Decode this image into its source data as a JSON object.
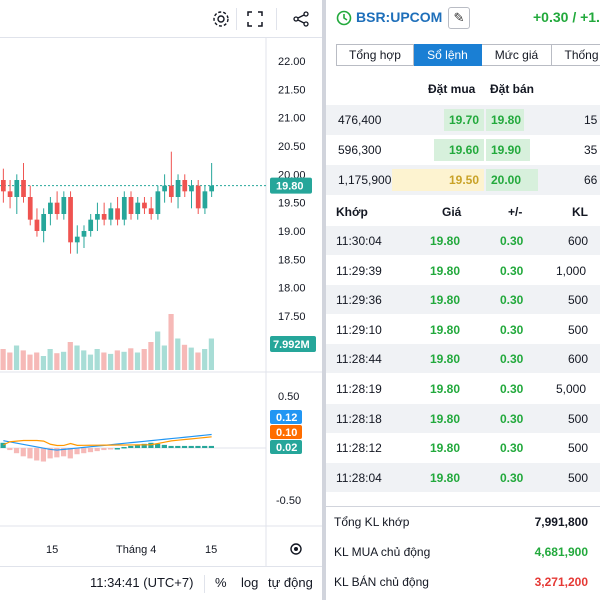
{
  "chart": {
    "toolbar": {
      "settings_icon": "gear-icon",
      "fullscreen_icon": "fullscreen-icon",
      "share_icon": "share-icon"
    },
    "price_axis": [
      "22.00",
      "21.50",
      "21.00",
      "20.50",
      "20.00",
      "19.50",
      "19.00",
      "18.50",
      "18.00",
      "17.50"
    ],
    "last_price_label": "19.80",
    "volume_label": "7.992M",
    "macd_axis": [
      "0.50",
      "-0.50"
    ],
    "macd_labels": {
      "macd": "0.12",
      "signal": "0.10",
      "hist": "0.02"
    },
    "time_axis": [
      "15",
      "Tháng 4",
      "15"
    ],
    "bottom": {
      "time": "11:34:41 (UTC+7)",
      "percent": "%",
      "log": "log",
      "auto": "tự động"
    }
  },
  "chart_data": {
    "type": "candlestick",
    "candles": [
      {
        "o": 19.9,
        "h": 20.1,
        "l": 19.5,
        "c": 19.7
      },
      {
        "o": 19.7,
        "h": 19.9,
        "l": 19.4,
        "c": 19.6
      },
      {
        "o": 19.6,
        "h": 20.0,
        "l": 19.3,
        "c": 19.9
      },
      {
        "o": 19.9,
        "h": 20.2,
        "l": 19.5,
        "c": 19.6
      },
      {
        "o": 19.6,
        "h": 19.8,
        "l": 19.1,
        "c": 19.2
      },
      {
        "o": 19.2,
        "h": 19.4,
        "l": 18.9,
        "c": 19.0
      },
      {
        "o": 19.0,
        "h": 19.4,
        "l": 18.8,
        "c": 19.3
      },
      {
        "o": 19.3,
        "h": 19.6,
        "l": 19.1,
        "c": 19.5
      },
      {
        "o": 19.5,
        "h": 19.7,
        "l": 19.2,
        "c": 19.3
      },
      {
        "o": 19.3,
        "h": 19.7,
        "l": 19.2,
        "c": 19.6
      },
      {
        "o": 19.6,
        "h": 19.7,
        "l": 18.6,
        "c": 18.8
      },
      {
        "o": 18.8,
        "h": 19.1,
        "l": 18.6,
        "c": 18.9
      },
      {
        "o": 18.9,
        "h": 19.1,
        "l": 18.7,
        "c": 19.0
      },
      {
        "o": 19.0,
        "h": 19.3,
        "l": 18.9,
        "c": 19.2
      },
      {
        "o": 19.2,
        "h": 19.5,
        "l": 19.0,
        "c": 19.3
      },
      {
        "o": 19.3,
        "h": 19.5,
        "l": 19.1,
        "c": 19.2
      },
      {
        "o": 19.2,
        "h": 19.5,
        "l": 19.1,
        "c": 19.4
      },
      {
        "o": 19.4,
        "h": 19.6,
        "l": 19.1,
        "c": 19.2
      },
      {
        "o": 19.2,
        "h": 19.7,
        "l": 19.1,
        "c": 19.6
      },
      {
        "o": 19.6,
        "h": 19.7,
        "l": 19.2,
        "c": 19.3
      },
      {
        "o": 19.3,
        "h": 19.6,
        "l": 19.2,
        "c": 19.5
      },
      {
        "o": 19.5,
        "h": 19.6,
        "l": 19.3,
        "c": 19.4
      },
      {
        "o": 19.4,
        "h": 19.6,
        "l": 19.2,
        "c": 19.3
      },
      {
        "o": 19.3,
        "h": 19.8,
        "l": 19.2,
        "c": 19.7
      },
      {
        "o": 19.7,
        "h": 20.0,
        "l": 19.5,
        "c": 19.8
      },
      {
        "o": 19.8,
        "h": 20.4,
        "l": 19.5,
        "c": 19.6
      },
      {
        "o": 19.6,
        "h": 20.0,
        "l": 19.4,
        "c": 19.9
      },
      {
        "o": 19.9,
        "h": 20.0,
        "l": 19.6,
        "c": 19.7
      },
      {
        "o": 19.7,
        "h": 19.9,
        "l": 19.4,
        "c": 19.8
      },
      {
        "o": 19.8,
        "h": 19.9,
        "l": 19.3,
        "c": 19.4
      },
      {
        "o": 19.4,
        "h": 19.8,
        "l": 19.3,
        "c": 19.7
      },
      {
        "o": 19.7,
        "h": 20.2,
        "l": 19.6,
        "c": 19.8
      }
    ],
    "volumes": [
      3,
      2.5,
      3.5,
      2.8,
      2.2,
      2.5,
      2,
      3,
      2.4,
      2.6,
      4,
      3.5,
      2.8,
      2.2,
      3,
      2.5,
      2.3,
      2.8,
      2.6,
      3.1,
      2.5,
      3,
      4,
      5.5,
      3.5,
      8,
      4.5,
      3.6,
      3.2,
      2.5,
      3,
      4.5
    ],
    "macd_hist": [
      0.05,
      -0.02,
      -0.05,
      -0.08,
      -0.1,
      -0.12,
      -0.13,
      -0.1,
      -0.09,
      -0.08,
      -0.1,
      -0.06,
      -0.05,
      -0.04,
      -0.03,
      -0.02,
      -0.01,
      0,
      0.01,
      0.02,
      0.03,
      0.04,
      0.05,
      0.04,
      0.03,
      0.02,
      0.02,
      0.02,
      0.02,
      0.02,
      0.02,
      0.02
    ],
    "ylim": [
      17.2,
      22.2
    ]
  },
  "panel": {
    "symbol": "BSR:UPCOM",
    "change": "+0.30 / +1.",
    "tabs": [
      "Tổng hợp",
      "Sổ lệnh",
      "Mức giá",
      "Thống"
    ],
    "active_tab": 1,
    "ob_headers": {
      "bid": "Đặt mua",
      "ask": "Đặt bán"
    },
    "orderbook": [
      {
        "bid_vol": "476,400",
        "bid": "19.70",
        "ask": "19.80",
        "ask_vol": "15"
      },
      {
        "bid_vol": "596,300",
        "bid": "19.60",
        "ask": "19.90",
        "ask_vol": "35"
      },
      {
        "bid_vol": "1,175,900",
        "bid": "19.50",
        "ask": "20.00",
        "ask_vol": "66"
      }
    ],
    "trades_headers": {
      "time": "Khớp",
      "price": "Giá",
      "change": "+/-",
      "vol": "KL"
    },
    "trades": [
      {
        "time": "11:30:04",
        "price": "19.80",
        "change": "0.30",
        "vol": "600"
      },
      {
        "time": "11:29:39",
        "price": "19.80",
        "change": "0.30",
        "vol": "1,000"
      },
      {
        "time": "11:29:36",
        "price": "19.80",
        "change": "0.30",
        "vol": "500"
      },
      {
        "time": "11:29:10",
        "price": "19.80",
        "change": "0.30",
        "vol": "500"
      },
      {
        "time": "11:28:44",
        "price": "19.80",
        "change": "0.30",
        "vol": "600"
      },
      {
        "time": "11:28:19",
        "price": "19.80",
        "change": "0.30",
        "vol": "5,000"
      },
      {
        "time": "11:28:18",
        "price": "19.80",
        "change": "0.30",
        "vol": "500"
      },
      {
        "time": "11:28:12",
        "price": "19.80",
        "change": "0.30",
        "vol": "500"
      },
      {
        "time": "11:28:04",
        "price": "19.80",
        "change": "0.30",
        "vol": "500"
      }
    ],
    "summary": [
      {
        "label": "Tổng KL khớp",
        "value": "7,991,800",
        "color": "#131722"
      },
      {
        "label": "KL MUA chủ động",
        "value": "4,681,900",
        "color": "#22a93c"
      },
      {
        "label": "KL BÁN chủ động",
        "value": "3,271,200",
        "color": "#e53935"
      }
    ]
  },
  "colors": {
    "up": "#26a69a",
    "down": "#ef5350",
    "green": "#22a93c",
    "accent": "#1a7fd4"
  }
}
